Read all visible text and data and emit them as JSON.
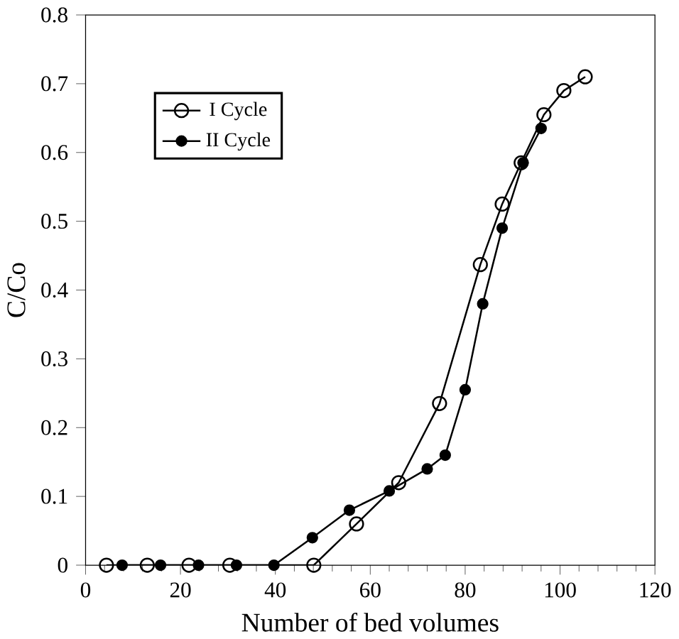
{
  "chart_data": {
    "type": "line",
    "xlabel": "Number of bed volumes",
    "ylabel": "C/Co",
    "xlim": [
      0,
      120
    ],
    "ylim": [
      0,
      0.8
    ],
    "xticks": [
      0,
      20,
      40,
      60,
      80,
      100,
      120
    ],
    "yticks": [
      0,
      0.1,
      0.2,
      0.3,
      0.4,
      0.5,
      0.6,
      0.7,
      0.8
    ],
    "legend": "top left",
    "grid": false,
    "series": [
      {
        "name": "I Cycle",
        "color": "#000000",
        "marker": "circle-open",
        "x": [
          4.4,
          13,
          21.8,
          30.4,
          48.1,
          57.1,
          66,
          74.6,
          83.2,
          87.8,
          91.8,
          96.6,
          100.8,
          105.3
        ],
        "values": [
          0,
          0,
          0,
          0,
          0,
          0.06,
          0.12,
          0.235,
          0.437,
          0.525,
          0.585,
          0.655,
          0.69,
          0.71
        ]
      },
      {
        "name": "II Cycle",
        "color": "#000000",
        "marker": "circle",
        "x": [
          7.7,
          15.8,
          23.8,
          31.8,
          39.7,
          47.8,
          55.6,
          64,
          72,
          75.8,
          80,
          83.7,
          87.8,
          92.2,
          96
        ],
        "values": [
          0,
          0,
          0,
          0,
          0,
          0.04,
          0.08,
          0.108,
          0.14,
          0.16,
          0.255,
          0.38,
          0.49,
          0.585,
          0.635
        ]
      }
    ]
  }
}
